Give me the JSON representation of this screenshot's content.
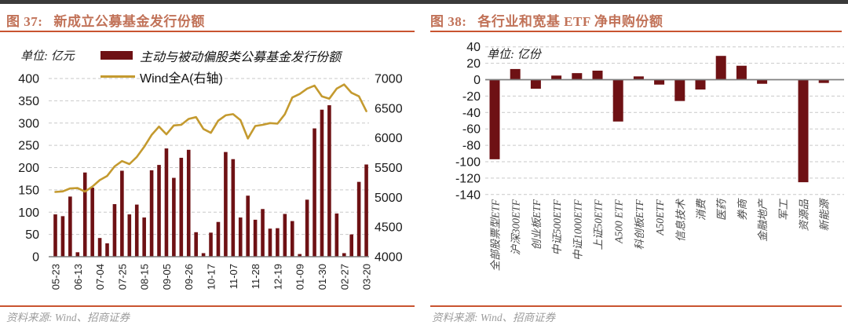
{
  "colors": {
    "bar": "#6e1114",
    "line": "#c49a2f",
    "title_text": "#c17258",
    "accent_rule": "#c95430",
    "grid": "#c9c9c9",
    "axis_zero": "#7f7f7f",
    "tick_text": "#1a1a1a",
    "date_text": "#222222",
    "category_text": "#4a4a4a",
    "top_border": "#3a3a3a",
    "source_text": "#9c9c9c"
  },
  "footer": {
    "source": "资料来源: Wind、招商证券"
  },
  "chart_data": [
    {
      "type": "bar+line",
      "fig_label": "图 37:",
      "title": "新成立公募基金发行份额",
      "unit": "单位: 亿元",
      "legend": [
        {
          "label": "主动与被动偏股类公募基金发行份额",
          "swatch": "bar"
        },
        {
          "label": "Wind全A(右轴)",
          "swatch": "line"
        }
      ],
      "left_axis": {
        "min": 0,
        "max": 400,
        "step": 50
      },
      "right_axis": {
        "min": 4000,
        "max": 7000,
        "step": 500
      },
      "x_tick_labels": [
        "05-23",
        "06-13",
        "07-04",
        "07-25",
        "08-15",
        "09-05",
        "09-26",
        "10-17",
        "11-07",
        "11-28",
        "12-19",
        "01-09",
        "01-30",
        "02-27",
        "03-20"
      ],
      "label_every": 3,
      "series": [
        {
          "name": "主动与被动偏股类公募基金发行份额",
          "type": "bar",
          "axis": "left",
          "values": [
            95,
            91,
            135,
            10,
            189,
            155,
            42,
            30,
            118,
            193,
            95,
            117,
            88,
            194,
            206,
            243,
            177,
            222,
            240,
            55,
            8,
            54,
            78,
            235,
            219,
            88,
            137,
            83,
            107,
            63,
            64,
            96,
            80,
            6,
            128,
            288,
            330,
            340,
            97,
            8,
            50,
            168,
            207
          ]
        },
        {
          "name": "Wind全A(右轴)",
          "type": "line",
          "axis": "right",
          "values": [
            5090,
            5100,
            5150,
            5155,
            5095,
            5180,
            5290,
            5360,
            5520,
            5610,
            5560,
            5680,
            5850,
            6050,
            6190,
            6060,
            6210,
            6220,
            6320,
            6350,
            6150,
            6085,
            6290,
            6380,
            6400,
            6300,
            5990,
            6200,
            6220,
            6250,
            6240,
            6400,
            6680,
            6740,
            6830,
            6880,
            6700,
            6660,
            6830,
            6900,
            6760,
            6700,
            6450
          ]
        }
      ]
    },
    {
      "type": "bar",
      "fig_label": "图 38:",
      "title": "各行业和宽基 ETF 净申购份额",
      "unit": "单位: 亿份",
      "y_axis": {
        "min": -140,
        "max": 40,
        "step": 20
      },
      "categories": [
        "全部股票型ETF",
        "沪深300ETF",
        "创业板ETF",
        "中证500ETF",
        "中证1000ETF",
        "上证50ETF",
        "A500 ETF",
        "科创板ETF",
        "A50ETF",
        "信息技术",
        "消费",
        "医药",
        "券商",
        "金融地产",
        "军工",
        "资源品",
        "新能源"
      ],
      "values": [
        -97,
        13,
        -11,
        5,
        8,
        11,
        -51,
        4,
        -6,
        -26,
        -12,
        29,
        17,
        -5,
        0,
        -125,
        -4
      ]
    }
  ]
}
